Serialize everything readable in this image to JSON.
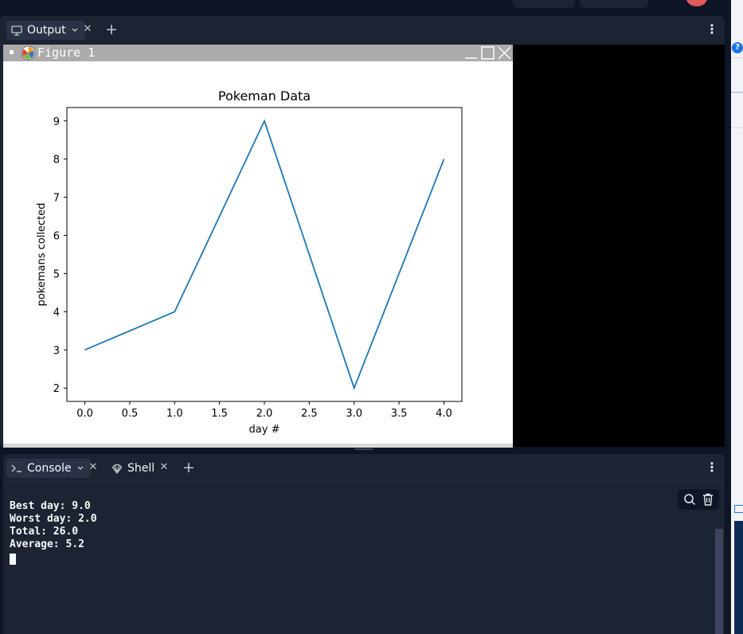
{
  "colors": {
    "app_bg": "#0e1525",
    "pane_bg": "#1c2333",
    "plot_line": "#1f77b4"
  },
  "output_pane": {
    "tab_label": "Output",
    "tab_icon": "monitor-icon"
  },
  "figure_window": {
    "title": "Figure 1"
  },
  "console_pane": {
    "tabs": [
      {
        "label": "Console",
        "icon": "prompt-icon"
      },
      {
        "label": "Shell",
        "icon": "shell-icon"
      }
    ],
    "output_lines": [
      "Best day: 9.0",
      "Worst day: 2.0",
      "Total: 26.0",
      "Average: 5.2"
    ]
  },
  "chart_data": {
    "type": "line",
    "title": "Pokeman Data",
    "xlabel": "day #",
    "ylabel": "pokemans collected",
    "x": [
      0,
      1,
      2,
      3,
      4
    ],
    "series": [
      {
        "values": [
          3,
          4,
          9,
          2,
          8
        ]
      }
    ],
    "xlim": [
      -0.2,
      4.2
    ],
    "ylim": [
      1.65,
      9.35
    ],
    "xticks": [
      "0.0",
      "0.5",
      "1.0",
      "1.5",
      "2.0",
      "2.5",
      "3.0",
      "3.5",
      "4.0"
    ],
    "yticks": [
      "2",
      "3",
      "4",
      "5",
      "6",
      "7",
      "8",
      "9"
    ],
    "grid": false
  }
}
